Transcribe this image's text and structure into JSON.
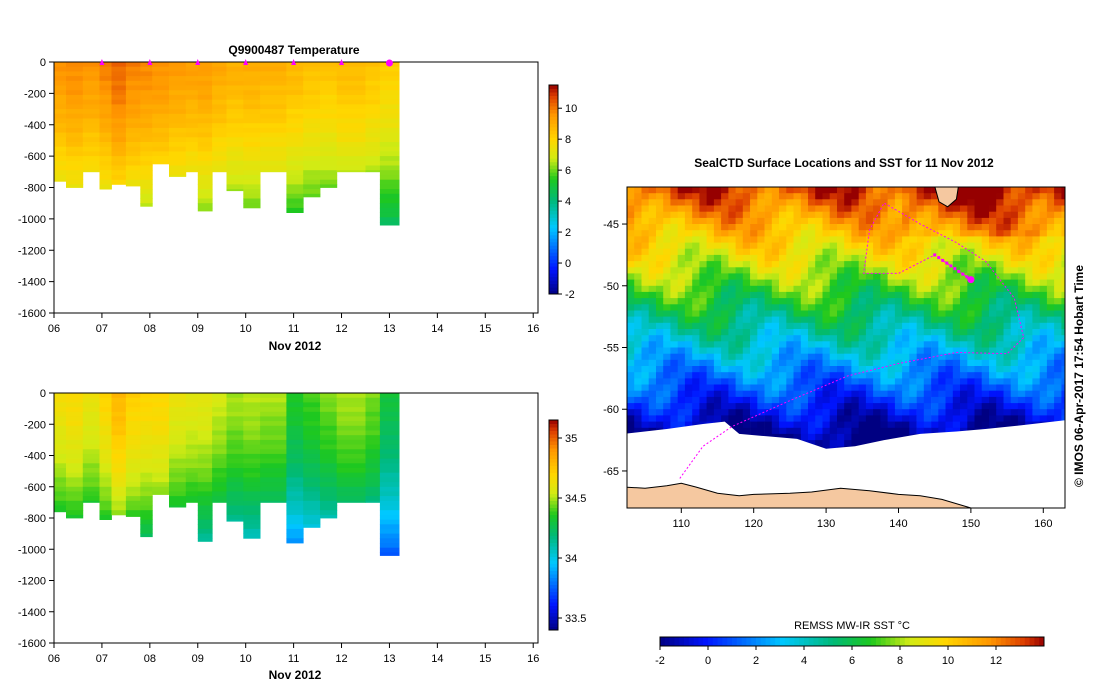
{
  "top_panel": {
    "title": "Q9900487  Temperature",
    "xlabel": "Nov 2012",
    "x_ticks": [
      "06",
      "07",
      "08",
      "09",
      "10",
      "11",
      "12",
      "13",
      "14",
      "15",
      "16"
    ],
    "y_ticks": [
      "0",
      "-200",
      "-400",
      "-600",
      "-800",
      "-1000",
      "-1200",
      "-1400",
      "-1600"
    ],
    "colorbar_ticks": [
      "10",
      "8",
      "6",
      "4",
      "2",
      "0",
      "-2"
    ]
  },
  "bottom_panel": {
    "xlabel": "Nov 2012",
    "x_ticks": [
      "06",
      "07",
      "08",
      "09",
      "10",
      "11",
      "12",
      "13",
      "14",
      "15",
      "16"
    ],
    "y_ticks": [
      "0",
      "-200",
      "-400",
      "-600",
      "-800",
      "-1000",
      "-1200",
      "-1400",
      "-1600"
    ],
    "colorbar_ticks": [
      "35",
      "34.5",
      "34",
      "33.5"
    ]
  },
  "map_panel": {
    "title": "SealCTD Surface Locations and SST for 11 Nov 2012",
    "x_ticks": [
      "110",
      "120",
      "130",
      "140",
      "150",
      "160"
    ],
    "y_ticks": [
      "-45",
      "-50",
      "-55",
      "-60",
      "-65"
    ],
    "colorbar_label": "REMSS MW-IR SST °C",
    "colorbar_ticks": [
      "-2",
      "0",
      "2",
      "4",
      "6",
      "8",
      "10",
      "12"
    ]
  },
  "credit": "© IMOS 06-Apr-2017 17:54 Hobart Time",
  "colors": {
    "track": "#ff00ff",
    "land": "#f5c8a0",
    "ice": "#ffffff"
  },
  "chart_data": [
    {
      "type": "heatmap",
      "variable": "temperature",
      "title": "Q9900487  Temperature",
      "xlabel": "Nov 2012",
      "xlim": [
        6,
        16.1
      ],
      "ylim": [
        -1600,
        0
      ],
      "clim": [
        -2,
        11.5
      ],
      "profiles": [
        {
          "day": 6.0,
          "max_depth": 760,
          "surface": 9.6
        },
        {
          "day": 6.25,
          "max_depth": 800,
          "surface": 9.8
        },
        {
          "day": 6.6,
          "max_depth": 700,
          "surface": 9.6
        },
        {
          "day": 6.95,
          "max_depth": 810,
          "surface": 9.9
        },
        {
          "day": 7.2,
          "max_depth": 780,
          "surface": 10.3
        },
        {
          "day": 7.5,
          "max_depth": 790,
          "surface": 9.9
        },
        {
          "day": 7.8,
          "max_depth": 920,
          "surface": 9.8
        },
        {
          "day": 8.05,
          "max_depth": 650,
          "surface": 9.7
        },
        {
          "day": 8.4,
          "max_depth": 730,
          "surface": 9.5
        },
        {
          "day": 8.75,
          "max_depth": 700,
          "surface": 9.4
        },
        {
          "day": 9.0,
          "max_depth": 950,
          "surface": 9.5
        },
        {
          "day": 9.3,
          "max_depth": 700,
          "surface": 9.2
        },
        {
          "day": 9.6,
          "max_depth": 820,
          "surface": 9.0
        },
        {
          "day": 9.95,
          "max_depth": 930,
          "surface": 9.1
        },
        {
          "day": 10.3,
          "max_depth": 700,
          "surface": 9.0
        },
        {
          "day": 10.85,
          "max_depth": 960,
          "surface": 8.8
        },
        {
          "day": 11.2,
          "max_depth": 860,
          "surface": 8.6
        },
        {
          "day": 11.55,
          "max_depth": 800,
          "surface": 8.5
        },
        {
          "day": 11.9,
          "max_depth": 700,
          "surface": 8.7
        },
        {
          "day": 12.5,
          "max_depth": 700,
          "surface": 8.5
        },
        {
          "day": 12.8,
          "max_depth": 1040,
          "surface": 8.2
        }
      ],
      "profile_end_day": 13.2,
      "surface_markers": [
        7,
        8,
        9,
        10,
        11,
        12,
        13
      ]
    },
    {
      "type": "heatmap",
      "variable": "salinity",
      "xlabel": "Nov 2012",
      "xlim": [
        6,
        16.1
      ],
      "ylim": [
        -1600,
        0
      ],
      "clim": [
        33.4,
        35.15
      ],
      "profiles": [
        {
          "day": 6.0,
          "max_depth": 760,
          "surface": 34.65
        },
        {
          "day": 6.25,
          "max_depth": 800,
          "surface": 34.68
        },
        {
          "day": 6.6,
          "max_depth": 700,
          "surface": 34.62
        },
        {
          "day": 6.95,
          "max_depth": 810,
          "surface": 34.7
        },
        {
          "day": 7.2,
          "max_depth": 780,
          "surface": 34.8
        },
        {
          "day": 7.5,
          "max_depth": 790,
          "surface": 34.72
        },
        {
          "day": 7.8,
          "max_depth": 920,
          "surface": 34.7
        },
        {
          "day": 8.05,
          "max_depth": 650,
          "surface": 34.7
        },
        {
          "day": 8.4,
          "max_depth": 730,
          "surface": 34.62
        },
        {
          "day": 8.75,
          "max_depth": 700,
          "surface": 34.6
        },
        {
          "day": 9.0,
          "max_depth": 950,
          "surface": 34.6
        },
        {
          "day": 9.3,
          "max_depth": 700,
          "surface": 34.55
        },
        {
          "day": 9.6,
          "max_depth": 820,
          "surface": 34.5
        },
        {
          "day": 9.95,
          "max_depth": 930,
          "surface": 34.52
        },
        {
          "day": 10.3,
          "max_depth": 700,
          "surface": 34.5
        },
        {
          "day": 10.85,
          "max_depth": 960,
          "surface": 34.35
        },
        {
          "day": 11.2,
          "max_depth": 860,
          "surface": 34.4
        },
        {
          "day": 11.55,
          "max_depth": 800,
          "surface": 34.45
        },
        {
          "day": 11.9,
          "max_depth": 700,
          "surface": 34.5
        },
        {
          "day": 12.5,
          "max_depth": 700,
          "surface": 34.45
        },
        {
          "day": 12.8,
          "max_depth": 1040,
          "surface": 34.3
        }
      ],
      "profile_end_day": 13.2
    },
    {
      "type": "heatmap",
      "variable": "sst_map",
      "title": "SealCTD Surface Locations and SST for 11 Nov 2012",
      "xlim": [
        102.5,
        163
      ],
      "ylim": [
        -68,
        -42
      ],
      "clim": [
        -2,
        14
      ],
      "track": [
        [
          109.8,
          -65.6
        ],
        [
          113,
          -63
        ],
        [
          117,
          -61.4
        ],
        [
          125,
          -59.3
        ],
        [
          133,
          -57.3
        ],
        [
          140,
          -56.3
        ],
        [
          148,
          -55.4
        ],
        [
          155,
          -55.5
        ],
        [
          157.3,
          -54.2
        ],
        [
          156,
          -51
        ],
        [
          152,
          -48
        ],
        [
          148,
          -46.5
        ],
        [
          143,
          -45
        ],
        [
          138,
          -43.3
        ],
        [
          136,
          -45.5
        ],
        [
          135.2,
          -49
        ],
        [
          140,
          -49
        ],
        [
          145,
          -47.5
        ],
        [
          150,
          -49.5
        ]
      ],
      "current_position": [
        150,
        -49.5
      ]
    }
  ]
}
